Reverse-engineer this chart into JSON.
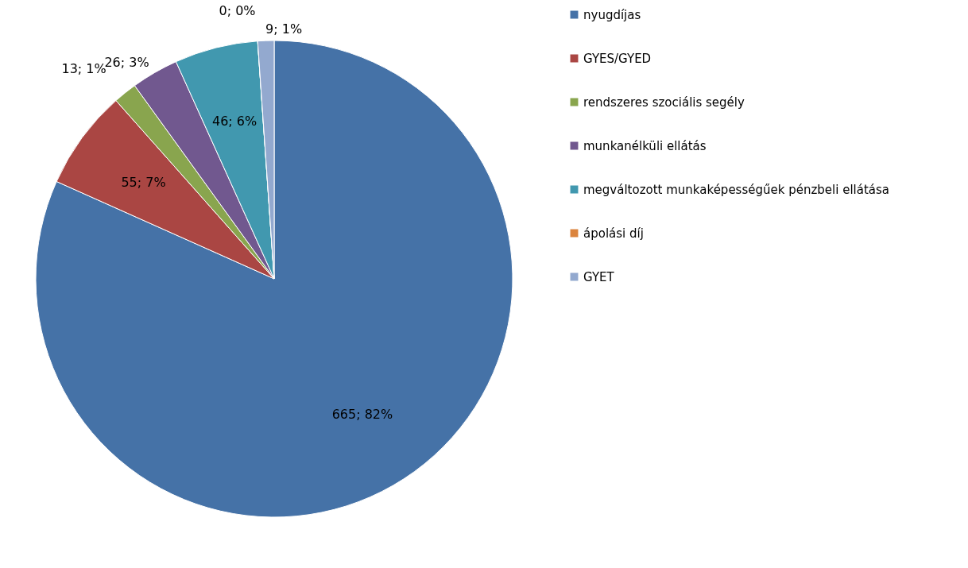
{
  "chart_data": {
    "type": "pie",
    "categories": [
      "nyugdíjas",
      "GYES/GYED",
      "rendszeres szociális segély",
      "munkanélküli ellátás",
      "megváltozott munkaképességűek pénzbeli ellátása",
      "ápolási díj",
      "GYET"
    ],
    "values": [
      665,
      55,
      13,
      26,
      46,
      0,
      9
    ],
    "colors": [
      "#4572a7",
      "#aa4643",
      "#89a54e",
      "#71588f",
      "#4198af",
      "#db843d",
      "#93a9cf"
    ],
    "value_labels": [
      "665; 82%",
      "55; 7%",
      "13; 1%",
      "26; 3%",
      "46; 6%",
      "0; 0%",
      "9; 1%"
    ],
    "legend": "right"
  }
}
